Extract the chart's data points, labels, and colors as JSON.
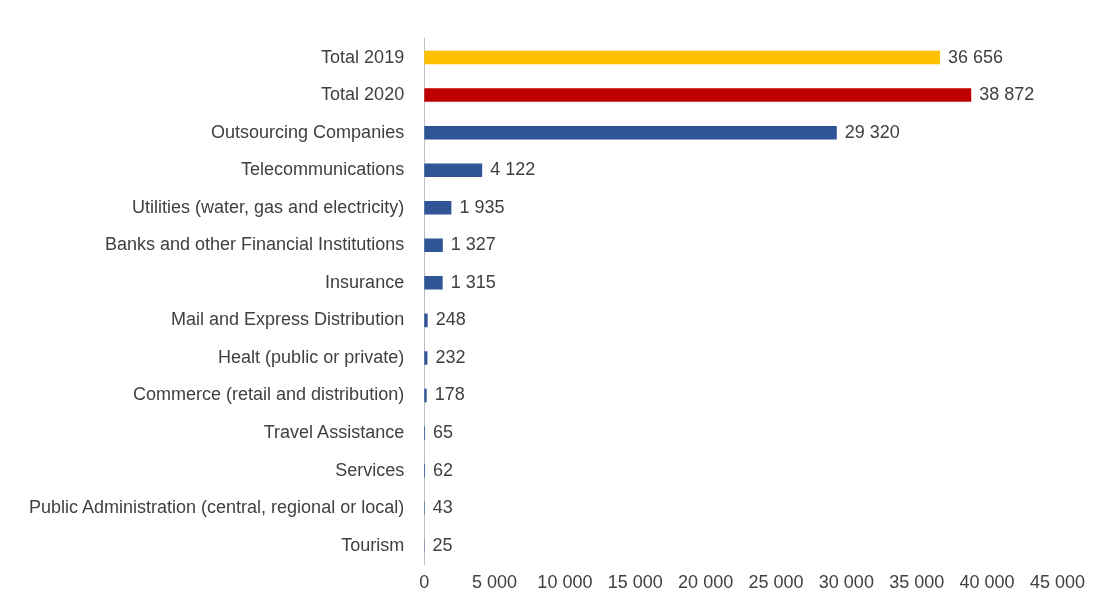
{
  "chart_data": {
    "type": "bar",
    "orientation": "horizontal",
    "categories": [
      "Total 2019",
      "Total 2020",
      "Outsourcing Companies",
      "Telecommunications",
      "Utilities (water, gas and electricity)",
      "Banks and other Financial Institutions",
      "Insurance",
      "Mail and Express Distribution",
      "Healt (public or private)",
      "Commerce (retail and distribution)",
      "Travel Assistance",
      "Services",
      "Public Administration (central, regional or local)",
      "Tourism"
    ],
    "values": [
      36656,
      38872,
      29320,
      4122,
      1935,
      1327,
      1315,
      248,
      232,
      178,
      65,
      62,
      43,
      25
    ],
    "value_labels": [
      "36 656",
      "38 872",
      "29 320",
      "4 122",
      "1 935",
      "1 327",
      "1 315",
      "248",
      "232",
      "178",
      "65",
      "62",
      "43",
      "25"
    ],
    "colors": [
      "#ffc000",
      "#c00000",
      "#2f5597",
      "#2f5597",
      "#2f5597",
      "#2f5597",
      "#2f5597",
      "#2f5597",
      "#2f5597",
      "#2f5597",
      "#2f5597",
      "#2f5597",
      "#2f5597",
      "#2f5597"
    ],
    "xlim": [
      0,
      45000
    ],
    "xticks": [
      0,
      {
        "value": 5000,
        "label": "5 000"
      },
      {
        "value": 10000,
        "label": "10 000"
      },
      {
        "value": 15000,
        "label": "15 000"
      },
      {
        "value": 20000,
        "label": "20 000"
      },
      {
        "value": 25000,
        "label": "25 000"
      },
      {
        "value": 30000,
        "label": "30 000"
      },
      {
        "value": 35000,
        "label": "35 000"
      },
      {
        "value": 40000,
        "label": "40 000"
      },
      {
        "value": 45000,
        "label": "45 000"
      }
    ],
    "grid": false,
    "legend": false
  }
}
